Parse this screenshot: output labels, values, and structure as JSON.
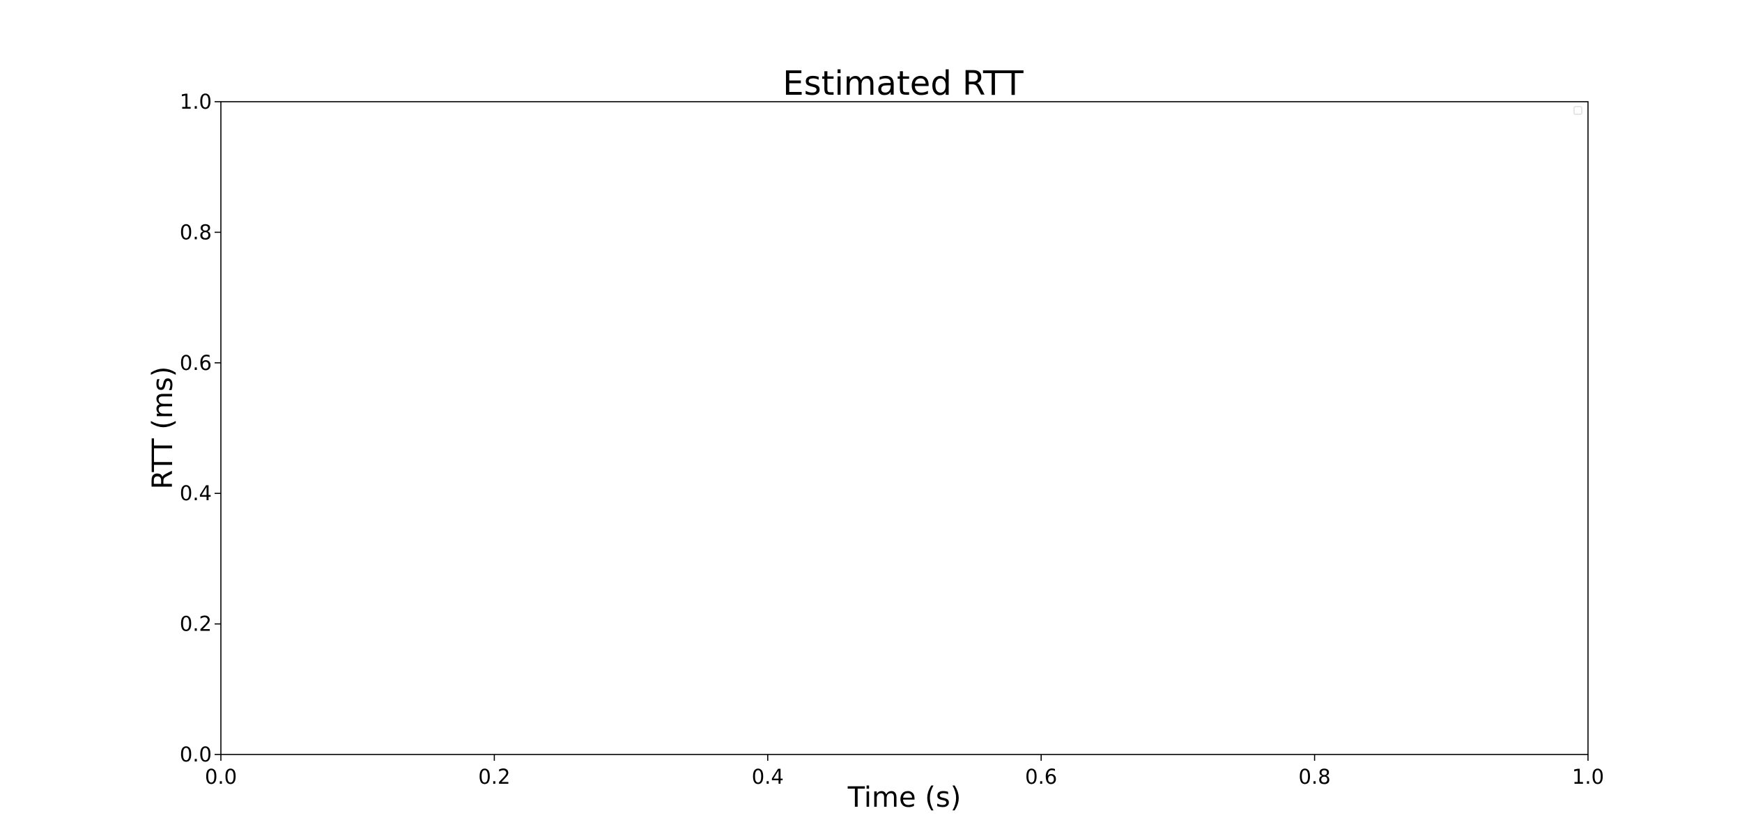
{
  "chart_data": {
    "type": "line",
    "title": "Estimated RTT",
    "xlabel": "Time (s)",
    "ylabel": "RTT (ms)",
    "xlim": [
      0.0,
      1.0
    ],
    "ylim": [
      0.0,
      1.0
    ],
    "xticks": [
      "0.0",
      "0.2",
      "0.4",
      "0.6",
      "0.8",
      "1.0"
    ],
    "yticks": [
      "0.0",
      "0.2",
      "0.4",
      "0.6",
      "0.8",
      "1.0"
    ],
    "series": [],
    "grid": false,
    "legend": "top-right",
    "legend_entries": []
  }
}
